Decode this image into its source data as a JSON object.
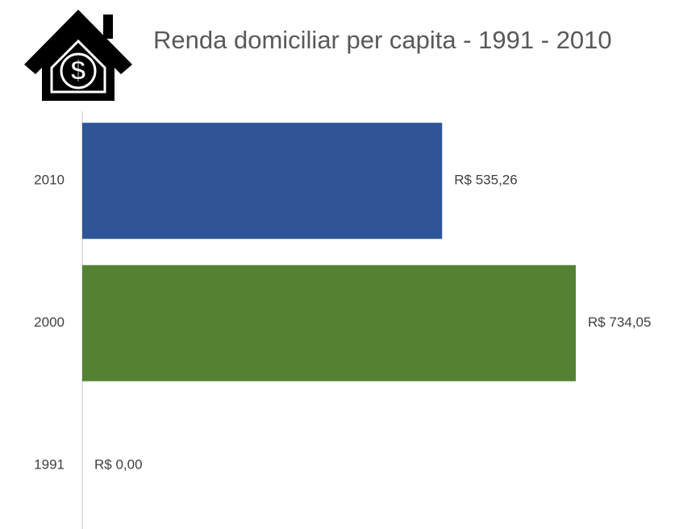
{
  "chart_data": {
    "type": "hbar",
    "title": "Renda domiciliar per capita - 1991 - 2010",
    "categories": [
      "2010",
      "2000",
      "1991"
    ],
    "values": [
      535.26,
      734.05,
      0
    ],
    "value_labels": [
      "R$ 535,26",
      "R$ 734,05",
      "R$ 0,00"
    ],
    "colors": [
      "#2f5597",
      "#548235",
      "#a5a5a5"
    ]
  }
}
